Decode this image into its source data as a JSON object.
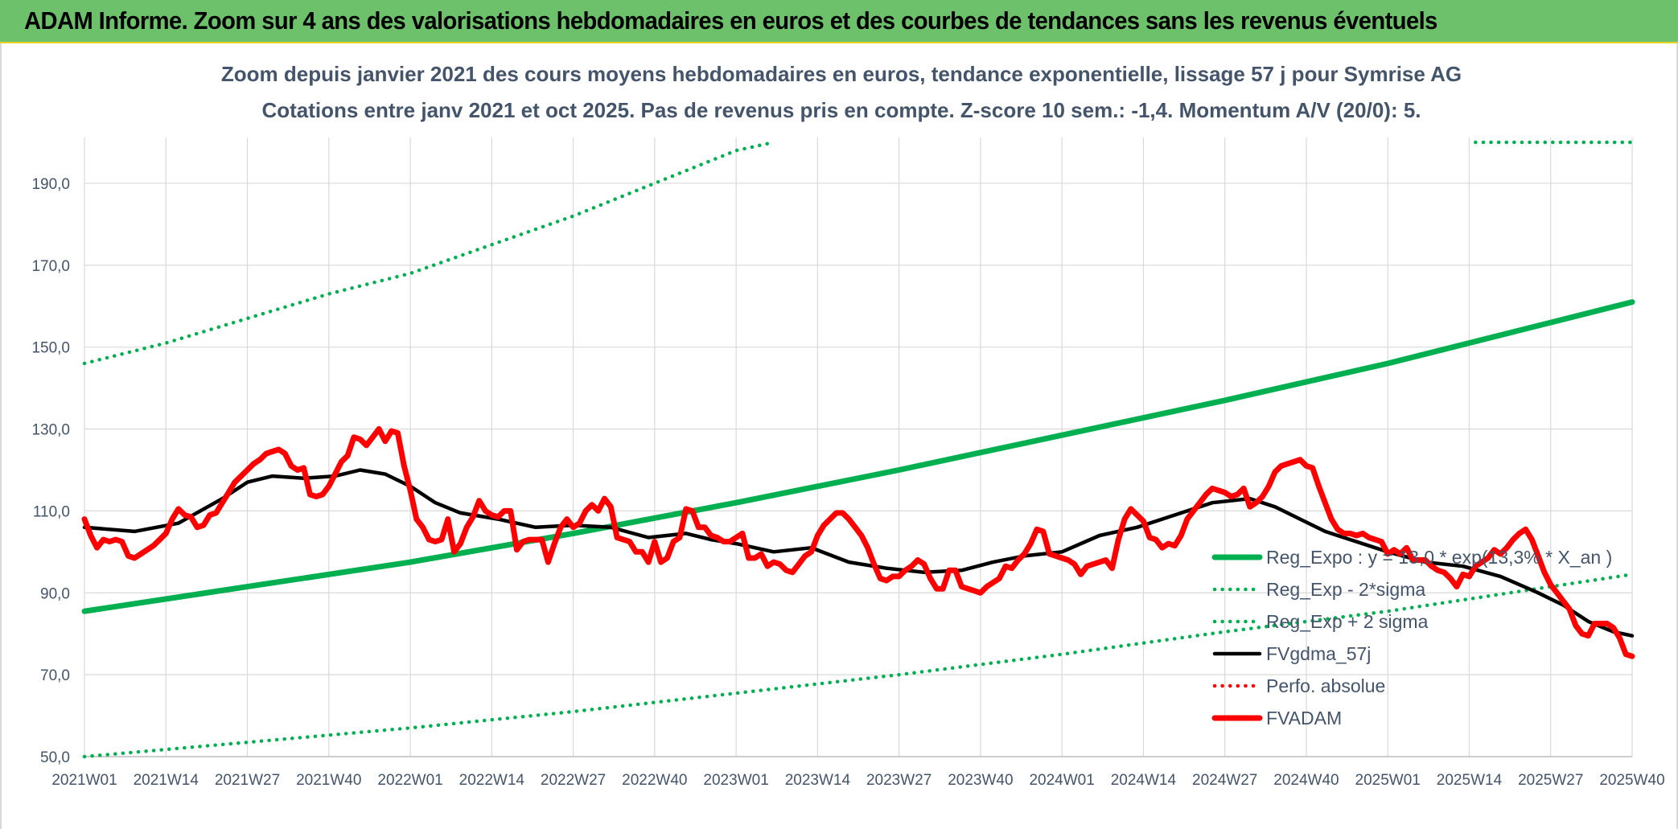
{
  "header": {
    "title": "ADAM Informe. Zoom sur 4 ans des valorisations hebdomadaires en euros et des courbes de tendances sans les revenus éventuels"
  },
  "colors": {
    "banner": "#6cc16a",
    "trend_green": "#00b050",
    "price_red": "#ff0000",
    "smooth_black": "#000000",
    "text": "#44546a",
    "grid": "#d9d9d9"
  },
  "chart_data": {
    "type": "line",
    "title": "Zoom depuis janvier 2021 des cours moyens hebdomadaires en euros, tendance exponentielle, lissage 57 j pour Symrise AG",
    "subtitle": "Cotations entre janv 2021 et oct 2025. Pas de revenus pris en compte. Z-score 10 sem.: -1,4. Momentum A/V (20/0): 5.",
    "xlabel": "",
    "ylabel": "",
    "x_range": [
      0,
      247
    ],
    "ylim": [
      50,
      200
    ],
    "y_ticks": [
      50,
      70,
      90,
      110,
      130,
      150,
      170,
      190
    ],
    "y_tick_labels": [
      "50,0",
      "70,0",
      "90,0",
      "110,0",
      "130,0",
      "150,0",
      "170,0",
      "190,0"
    ],
    "x_ticks": [
      {
        "x": 0,
        "label": "2021W01"
      },
      {
        "x": 13,
        "label": "2021W14"
      },
      {
        "x": 26,
        "label": "2021W27"
      },
      {
        "x": 39,
        "label": "2021W40"
      },
      {
        "x": 52,
        "label": "2022W01"
      },
      {
        "x": 65,
        "label": "2022W14"
      },
      {
        "x": 78,
        "label": "2022W27"
      },
      {
        "x": 91,
        "label": "2022W40"
      },
      {
        "x": 104,
        "label": "2023W01"
      },
      {
        "x": 117,
        "label": "2023W14"
      },
      {
        "x": 130,
        "label": "2023W27"
      },
      {
        "x": 143,
        "label": "2023W40"
      },
      {
        "x": 156,
        "label": "2024W01"
      },
      {
        "x": 169,
        "label": "2024W14"
      },
      {
        "x": 182,
        "label": "2024W27"
      },
      {
        "x": 195,
        "label": "2024W40"
      },
      {
        "x": 208,
        "label": "2025W01"
      },
      {
        "x": 221,
        "label": "2025W14"
      },
      {
        "x": 234,
        "label": "2025W27"
      },
      {
        "x": 247,
        "label": "2025W40"
      }
    ],
    "legend_position": "lower-right",
    "series": [
      {
        "name": "Reg_Expo : y = 13,0 * exp(13,3% * X_an )",
        "style": "solid-thick",
        "color": "#00b050",
        "x": [
          0,
          26,
          52,
          78,
          104,
          130,
          156,
          182,
          208,
          234,
          247
        ],
        "values": [
          85.5,
          91.5,
          97.5,
          104.5,
          112,
          120,
          128.5,
          137,
          146,
          156,
          161
        ]
      },
      {
        "name": "Reg_Exp - 2*sigma",
        "style": "dotted",
        "color": "#00b050",
        "x": [
          0,
          26,
          52,
          78,
          104,
          130,
          156,
          182,
          208,
          234,
          247
        ],
        "values": [
          50,
          53.5,
          57,
          61,
          65.5,
          70,
          75,
          80.5,
          85.5,
          91.5,
          94.5
        ]
      },
      {
        "name": "Reg_Exp + 2 sigma",
        "style": "dotted",
        "color": "#00b050",
        "x": [
          0,
          13,
          26,
          39,
          52,
          65,
          78,
          91,
          104,
          110
        ],
        "values": [
          146,
          151,
          157,
          163,
          168,
          175,
          182,
          190,
          198,
          201
        ],
        "segment2_x": [
          222,
          247
        ],
        "segment2_values": [
          200,
          200
        ]
      },
      {
        "name": "FVgdma_57j",
        "style": "solid",
        "color": "#000000",
        "x": [
          0,
          8,
          15,
          22,
          26,
          30,
          35,
          40,
          44,
          48,
          52,
          56,
          60,
          66,
          72,
          78,
          84,
          90,
          96,
          100,
          104,
          110,
          116,
          122,
          128,
          134,
          140,
          145,
          150,
          156,
          162,
          168,
          174,
          180,
          186,
          190,
          194,
          198,
          202,
          208,
          214,
          220,
          226,
          232,
          236,
          240,
          244,
          247
        ],
        "values": [
          106,
          105,
          107,
          113,
          117,
          118.5,
          118,
          118.5,
          120,
          119,
          116,
          112,
          109.5,
          108,
          106,
          106.5,
          106,
          103.5,
          104.5,
          103,
          102,
          100,
          101,
          97.5,
          96,
          95,
          95.5,
          97.5,
          99,
          100,
          104,
          106,
          109,
          112,
          113,
          111,
          108,
          105,
          103,
          100,
          97.5,
          96.5,
          94,
          90,
          87,
          83,
          80.5,
          79.5
        ]
      },
      {
        "name": "Perfo. absolue",
        "style": "dotted",
        "color": "#ff0000",
        "x": [],
        "values": []
      },
      {
        "name": "FVADAM",
        "style": "solid-thick",
        "color": "#ff0000",
        "x": [
          0,
          1,
          2,
          3,
          4,
          5,
          6,
          7,
          8,
          9,
          10,
          11,
          12,
          13,
          14,
          15,
          16,
          17,
          18,
          19,
          20,
          21,
          22,
          23,
          24,
          25,
          26,
          27,
          28,
          29,
          30,
          31,
          32,
          33,
          34,
          35,
          36,
          37,
          38,
          39,
          40,
          41,
          42,
          43,
          44,
          45,
          46,
          47,
          48,
          49,
          50,
          51,
          52,
          53,
          54,
          55,
          56,
          57,
          58,
          59,
          60,
          61,
          62,
          63,
          64,
          65,
          66,
          67,
          68,
          69,
          70,
          71,
          72,
          73,
          74,
          75,
          76,
          77,
          78,
          79,
          80,
          81,
          82,
          83,
          84,
          85,
          86,
          87,
          88,
          89,
          90,
          91,
          92,
          93,
          94,
          95,
          96,
          97,
          98,
          99,
          100,
          101,
          102,
          103,
          104,
          105,
          106,
          107,
          108,
          109,
          110,
          111,
          112,
          113,
          114,
          115,
          116,
          117,
          118,
          119,
          120,
          121,
          122,
          123,
          124,
          125,
          126,
          127,
          128,
          129,
          130,
          131,
          132,
          133,
          134,
          135,
          136,
          137,
          138,
          139,
          140,
          141,
          142,
          143,
          144,
          145,
          146,
          147,
          148,
          149,
          150,
          151,
          152,
          153,
          154,
          155,
          156,
          157,
          158,
          159,
          160,
          161,
          162,
          163,
          164,
          165,
          166,
          167,
          168,
          169,
          170,
          171,
          172,
          173,
          174,
          175,
          176,
          177,
          178,
          179,
          180,
          181,
          182,
          183,
          184,
          185,
          186,
          187,
          188,
          189,
          190,
          191,
          192,
          193,
          194,
          195,
          196,
          197,
          198,
          199,
          200,
          201,
          202,
          203,
          204,
          205,
          206,
          207,
          208,
          209,
          210,
          211,
          212,
          213,
          214,
          215,
          216,
          217,
          218,
          219,
          220,
          221,
          222,
          223,
          224,
          225,
          226,
          227,
          228,
          229,
          230,
          231,
          232,
          233,
          234,
          235,
          236,
          237,
          238,
          239,
          240,
          241,
          242,
          243,
          244,
          245,
          246,
          247
        ],
        "values": [
          108,
          104,
          101,
          103,
          102.5,
          103,
          102.5,
          99,
          98.5,
          99.5,
          100.5,
          101.5,
          103,
          104.5,
          108,
          110.5,
          109,
          108.5,
          106,
          106.5,
          109,
          109.5,
          112,
          114.5,
          117,
          118.5,
          120,
          121.5,
          122.5,
          124,
          124.5,
          125,
          124,
          121,
          120,
          120.5,
          114,
          113.5,
          114,
          116,
          119,
          122,
          123.5,
          128,
          127.5,
          126,
          128,
          130,
          127,
          129.5,
          129,
          121,
          115,
          108,
          106,
          103,
          102.5,
          103,
          108,
          100,
          102,
          106,
          108.5,
          112.5,
          110,
          109,
          108.5,
          110,
          110,
          100.5,
          102.5,
          103,
          103,
          103,
          97.5,
          102,
          106,
          108,
          106,
          107,
          110,
          111.5,
          110,
          113,
          111,
          103.5,
          103,
          102.5,
          100,
          100,
          97.5,
          102.5,
          97.5,
          98.5,
          102.5,
          103.5,
          110.5,
          110,
          106,
          106,
          104,
          103.5,
          102.5,
          102.5,
          103.5,
          104.5,
          98.5,
          98.5,
          99.5,
          96.5,
          97.5,
          97,
          95.5,
          95,
          97,
          99,
          100,
          104,
          106.5,
          108,
          109.5,
          109.5,
          108,
          106,
          104,
          101,
          97,
          93.5,
          93,
          94,
          94,
          95.5,
          96.5,
          98,
          97,
          93.5,
          91,
          91,
          95.5,
          95.5,
          91.5,
          91,
          90.5,
          90,
          91.5,
          92.5,
          93.5,
          96.5,
          96,
          98,
          99.5,
          102,
          105.5,
          105,
          99.5,
          99,
          98.5,
          98,
          97,
          94.5,
          96.5,
          97,
          97.5,
          98,
          96,
          103,
          108,
          110.5,
          109,
          107.5,
          103.5,
          103,
          101,
          102,
          101.5,
          104,
          108,
          110,
          112,
          114,
          115.5,
          115,
          114.5,
          113.5,
          114,
          115.5,
          111,
          112,
          113.5,
          116,
          119.5,
          121,
          121.5,
          122,
          122.5,
          121,
          120.5,
          116,
          112,
          108,
          105.5,
          104.5,
          104.5,
          104,
          104.5,
          103.5,
          103,
          102.5,
          99.5,
          100.5,
          99.5,
          101,
          98,
          98,
          98,
          96.5,
          95.5,
          95,
          93.5,
          91.5,
          94.5,
          94,
          96.5,
          97.5,
          98.5,
          100.5,
          99.5,
          101,
          103,
          104.5,
          105.5,
          103,
          99,
          95,
          92,
          90,
          88,
          86,
          82,
          80,
          79.5,
          82.5,
          82.5,
          82.5,
          81.5,
          79,
          75,
          74.5
        ]
      }
    ]
  }
}
